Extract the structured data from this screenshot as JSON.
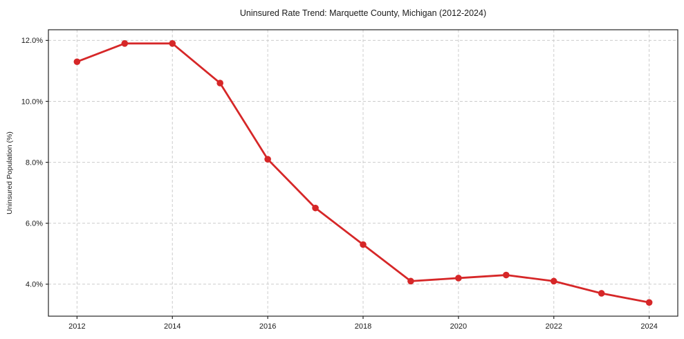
{
  "chart_data": {
    "type": "line",
    "title": "Uninsured Rate Trend: Marquette County, Michigan (2012-2024)",
    "xlabel": "",
    "ylabel": "Uninsured Population (%)",
    "x": [
      2012,
      2013,
      2014,
      2015,
      2016,
      2017,
      2018,
      2019,
      2020,
      2021,
      2022,
      2023,
      2024
    ],
    "values": [
      11.3,
      11.9,
      11.9,
      10.6,
      8.1,
      6.5,
      5.3,
      4.1,
      4.2,
      4.3,
      4.1,
      3.7,
      3.4
    ],
    "xticks": [
      2012,
      2014,
      2016,
      2018,
      2020,
      2022,
      2024
    ],
    "xtick_labels": [
      "2012",
      "2014",
      "2016",
      "2018",
      "2020",
      "2022",
      "2024"
    ],
    "yticks": [
      4,
      6,
      8,
      10,
      12
    ],
    "ytick_labels": [
      "4.0%",
      "6.0%",
      "8.0%",
      "10.0%",
      "12.0%"
    ],
    "xlim": [
      2011.4,
      2024.6
    ],
    "ylim": [
      2.95,
      12.35
    ],
    "line_color": "#d62728",
    "marker": "circle",
    "marker_radius": 4.8,
    "line_width": 2.8,
    "grid": "dashed",
    "grid_color": "#cccccc",
    "spine_color": "#262626",
    "legend": "none"
  }
}
